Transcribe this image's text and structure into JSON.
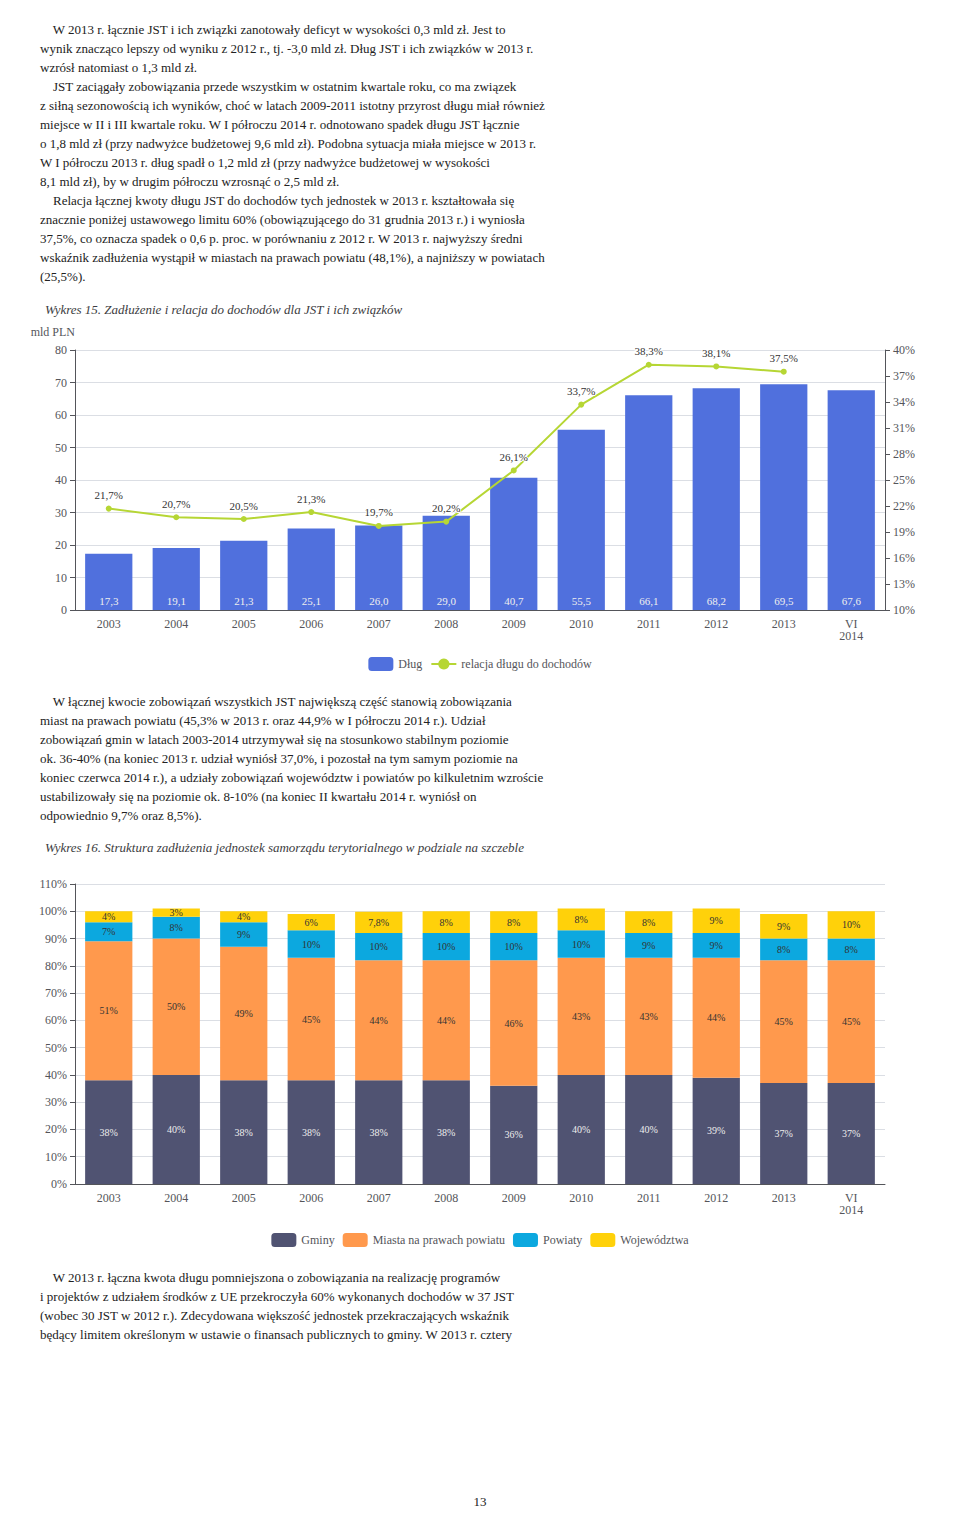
{
  "chart_data": [
    {
      "type": "bar",
      "title": "Wykres 15. Zadłużenie i relacja do dochodów dla JST i ich związków",
      "annotations": [
        "    W 2013 r. łącznie JST i ich związki zanotowały deficyt w wysokości 0,3 mld zł. Jest to\nwynik znacząco lepszy od wyniku z 2012 r., tj. -3,0 mld zł. Dług JST i ich związków w 2013 r.\nwzrósł natomiast o 1,3 mld zł.\n    JST zaciągały zobowiązania przede wszystkim w ostatnim kwartale roku, co ma związek\nz siłną sezonowością ich wyników, choć w latach 2009-2011 istotny przyrost długu miał również\nmiejsce w II i III kwartale roku. W I półroczu 2014 r. odnotowano spadek długu JST łącznie\no 1,8 mld zł (przy nadwyżce budżetowej 9,6 mld zł). Podobna sytuacja miała miejsce w 2013 r.\nW I półroczu 2013 r. dług spadł o 1,2 mld zł (przy nadwyżce budżetowej w wysokości\n8,1 mld zł), by w drugim półroczu wzrosnąć o 2,5 mld zł.\n    Relacja łącznej kwoty długu JST do dochodów tych jednostek w 2013 r. kształtowała się\nznacznie poniżej ustawowego limitu 60% (obowiązującego do 31 grudnia 2013 r.) i wyniosła\n37,5%, co oznacza spadek o 0,6 p. proc. w porównaniu z 2012 r. W 2013 r. najwyższy średni\nwskaźnik zadłużenia wystąpił w miastach na prawach powiatu (48,1%), a najniższy w powiatach\n(25,5%)."
      ],
      "ylabel": "mld PLN",
      "categories": [
        "2003",
        "2004",
        "2005",
        "2006",
        "2007",
        "2008",
        "2009",
        "2010",
        "2011",
        "2012",
        "2013",
        "VI\n2014"
      ],
      "series": [
        {
          "name": "Dług",
          "type": "bar",
          "values": [
            17.3,
            19.1,
            21.3,
            25.1,
            26.0,
            29.0,
            40.7,
            55.5,
            66.1,
            68.2,
            69.5,
            67.6
          ],
          "value_labels": [
            "17,3",
            "19,1",
            "21,3",
            "25,1",
            "26,0",
            "29,0",
            "40,7",
            "55,5",
            "66,1",
            "68,2",
            "69,5",
            "67,6"
          ]
        },
        {
          "name": "relacja długu do dochodów",
          "type": "line",
          "axis": "y2",
          "marker": "circle",
          "values": [
            21.7,
            20.7,
            20.5,
            21.3,
            19.7,
            20.2,
            26.1,
            33.7,
            38.3,
            38.1,
            37.5,
            null
          ],
          "value_labels": [
            "21,7%",
            "20,7%",
            "20,5%",
            "21,3%",
            "19,7%",
            "20,2%",
            "26,1%",
            "33,7%",
            "38,3%",
            "38,1%",
            "37,5%",
            null
          ]
        }
      ],
      "ylim": [
        0,
        80
      ],
      "yticks": [
        0,
        10,
        20,
        30,
        40,
        50,
        60,
        70,
        80
      ],
      "y2lim": [
        10,
        40
      ],
      "y2ticks": [
        {
          "value": 10,
          "label": "10%"
        },
        {
          "value": 13,
          "label": "13%"
        },
        {
          "value": 16,
          "label": "16%"
        },
        {
          "value": 19,
          "label": "19%"
        },
        {
          "value": 22,
          "label": "22%"
        },
        {
          "value": 25,
          "label": "25%"
        },
        {
          "value": 28,
          "label": "28%"
        },
        {
          "value": 31,
          "label": "31%"
        },
        {
          "value": 34,
          "label": "34%"
        },
        {
          "value": 37,
          "label": "37%"
        },
        {
          "value": 40,
          "label": "40%"
        }
      ],
      "grid": true,
      "legend": "bottom",
      "data_labels": true
    },
    {
      "type": "bar",
      "title": "Wykres 16. Struktura zadłużenia jednostek samorządu terytorialnego w podziale na szczeble",
      "annotations": [
        "    W łącznej kwocie zobowiązań wszystkich JST największą część stanowią zobowiązania\nmiast na prawach powiatu (45,3% w 2013 r. oraz 44,9% w I półroczu 2014 r.). Udział\nzobowiązań gmin w latach 2003-2014 utrzymywał się na stosunkowo stabilnym poziomie\nok. 36-40% (na koniec 2013 r. udział wyniósł 37,0%, i pozostał na tym samym poziomie na\nkoniec czerwca 2014 r.), a udziały zobowiązań województw i powiatów po kilkuletnim wzroście\nustabilizowały się na poziomie ok. 8-10% (na koniec II kwartału 2014 r. wyniósł on\nodpowiednio 9,7% oraz 8,5%).",
        "    W 2013 r. łączna kwota długu pomniejszona o zobowiązania na realizację programów\ni projektów z udziałem środków z UE przekroczyła 60% wykonanych dochodów w 37 JST\n(wobec 30 JST w 2012 r.). Zdecydowana większość jednostek przekraczających wskaźnik\nbędący limitem określonym w ustawie o finansach publicznych to gminy. W 2013 r. cztery",
        "13"
      ],
      "categories": [
        "2003",
        "2004",
        "2005",
        "2006",
        "2007",
        "2008",
        "2009",
        "2010",
        "2011",
        "2012",
        "2013",
        "VI\n2014"
      ],
      "stacked": true,
      "series": [
        {
          "name": "Gminy",
          "values": [
            38,
            40,
            38,
            38,
            38,
            38,
            36,
            40,
            40,
            39,
            37,
            37
          ],
          "value_labels": [
            "38%",
            "40%",
            "38%",
            "38%",
            "38%",
            "38%",
            "36%",
            "40%",
            "40%",
            "39%",
            "37%",
            "37%"
          ]
        },
        {
          "name": "Miasta na prawach powiatu",
          "values": [
            51,
            50,
            49,
            45,
            44,
            44,
            46,
            43,
            43,
            44,
            45,
            45
          ],
          "value_labels": [
            "51%",
            "50%",
            "49%",
            "45%",
            "44%",
            "44%",
            "46%",
            "43%",
            "43%",
            "44%",
            "45%",
            "45%"
          ]
        },
        {
          "name": "Powiaty",
          "values": [
            7,
            8,
            9,
            10,
            10,
            10,
            10,
            10,
            9,
            9,
            8,
            8
          ],
          "value_labels": [
            "7%",
            "8%",
            "9%",
            "10%",
            "10%",
            "10%",
            "10%",
            "10%",
            "9%",
            "9%",
            "8%",
            "8%"
          ]
        },
        {
          "name": "Województwa",
          "values": [
            4,
            3,
            4,
            6,
            7.8,
            8,
            8,
            8,
            8,
            9,
            9,
            10
          ],
          "value_labels": [
            "4%",
            "3%",
            "4%",
            "6%",
            "7,8%",
            "8%",
            "8%",
            "8%",
            "8%",
            "9%",
            "9%",
            "10%"
          ]
        }
      ],
      "ylim": [
        0,
        110
      ],
      "yticks": [
        {
          "value": 0,
          "label": "0%"
        },
        {
          "value": 10,
          "label": "10%"
        },
        {
          "value": 20,
          "label": "20%"
        },
        {
          "value": 30,
          "label": "30%"
        },
        {
          "value": 40,
          "label": "40%"
        },
        {
          "value": 50,
          "label": "50%"
        },
        {
          "value": 60,
          "label": "60%"
        },
        {
          "value": 70,
          "label": "70%"
        },
        {
          "value": 80,
          "label": "80%"
        },
        {
          "value": 90,
          "label": "90%"
        },
        {
          "value": 100,
          "label": "100%"
        },
        {
          "value": 110,
          "label": "110%"
        }
      ],
      "grid": true,
      "legend": "bottom",
      "data_labels": true
    }
  ]
}
